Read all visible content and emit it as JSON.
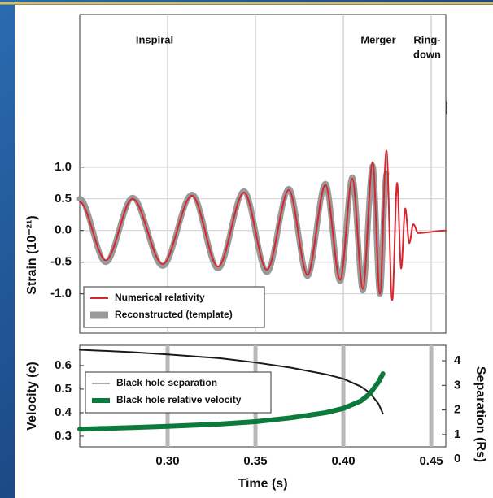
{
  "chart_data": [
    {
      "type": "line",
      "smooth": true,
      "annotations": [
        "Inspiral",
        "Merger",
        "Ring-",
        "down"
      ],
      "ylabel": "Strain (10⁻²¹)",
      "x": [
        0.25,
        0.2648,
        0.2801,
        0.2972,
        0.3139,
        0.3287,
        0.3435,
        0.3565,
        0.369,
        0.3796,
        0.3898,
        0.3982,
        0.4051,
        0.4111,
        0.4167,
        0.4208,
        0.4245,
        0.4278,
        0.4306,
        0.4329,
        0.4352,
        0.4375,
        0.4398,
        0.4426,
        0.4583
      ],
      "series": [
        {
          "name": "Reconstructed (template)",
          "color": "#999999",
          "line_width": 7,
          "values": [
            0.5,
            -0.5,
            0.52,
            -0.56,
            0.57,
            -0.6,
            0.62,
            -0.66,
            0.66,
            -0.72,
            0.74,
            -0.8,
            0.84,
            -0.95,
            1.02,
            -1.0,
            0.9,
            null,
            null,
            null,
            null,
            null,
            null,
            null,
            null
          ]
        },
        {
          "name": "Numerical relativity",
          "color": "#d8262e",
          "line_width": 2,
          "values": [
            0.45,
            -0.47,
            0.5,
            -0.53,
            0.55,
            -0.57,
            0.6,
            -0.62,
            0.64,
            -0.7,
            0.72,
            -0.78,
            0.82,
            -0.92,
            1.08,
            -1.0,
            1.26,
            -1.1,
            0.75,
            -0.6,
            0.35,
            -0.2,
            0.1,
            -0.04,
            0
          ]
        }
      ],
      "legend_order": [
        1,
        0
      ],
      "legend": "lower left",
      "xlim": [
        0.25,
        0.4583
      ],
      "xticks": [
        0.3,
        0.35,
        0.4,
        0.45
      ],
      "xtick_labels": false,
      "ylim": [
        -1.62,
        3.41
      ],
      "yticks": [
        {
          "value": 1,
          "label": "1.0"
        },
        0.5,
        {
          "value": 0,
          "label": "0.0"
        },
        -0.5,
        {
          "value": -1,
          "label": "-1.0"
        }
      ],
      "grid": true
    },
    {
      "type": "line",
      "smooth": false,
      "xlabel": "Time (s)",
      "ylabel": "Velocity (c)",
      "y2label": "Separation (Rs)",
      "x": [
        0.25,
        0.28,
        0.3,
        0.33,
        0.35,
        0.37,
        0.39,
        0.4,
        0.41,
        0.415,
        0.42,
        0.4225
      ],
      "series": [
        {
          "name": "Black hole separation",
          "color": "#1a1a1a",
          "legend_color": "#aaaaaa",
          "line_width": 2,
          "axis": "y2",
          "values": [
            4.45,
            4.35,
            4.26,
            4.1,
            3.93,
            3.72,
            3.45,
            3.27,
            2.95,
            2.7,
            2.25,
            1.85
          ]
        },
        {
          "name": "Black hole relative velocity",
          "color": "#0b7a3b",
          "line_width": 6,
          "values": [
            0.33,
            0.337,
            0.342,
            0.352,
            0.362,
            0.378,
            0.4,
            0.418,
            0.45,
            0.48,
            0.53,
            0.565
          ]
        }
      ],
      "legend_order": [
        0,
        1
      ],
      "legend": "center left",
      "xlim": [
        0.25,
        0.4583
      ],
      "xticks": [
        {
          "value": 0.3,
          "label": "0.30"
        },
        {
          "value": 0.35,
          "label": "0.35"
        },
        {
          "value": 0.4,
          "label": "0.40"
        },
        {
          "value": 0.45,
          "label": "0.45"
        }
      ],
      "xtick_labels": true,
      "ylim": [
        0.255,
        0.686
      ],
      "yticks": [
        0.3,
        0.4,
        0.5,
        0.6
      ],
      "y2lim": [
        0.5,
        4.63
      ],
      "y2ticks": [
        0,
        1,
        2,
        3,
        4
      ],
      "grid": true
    }
  ]
}
